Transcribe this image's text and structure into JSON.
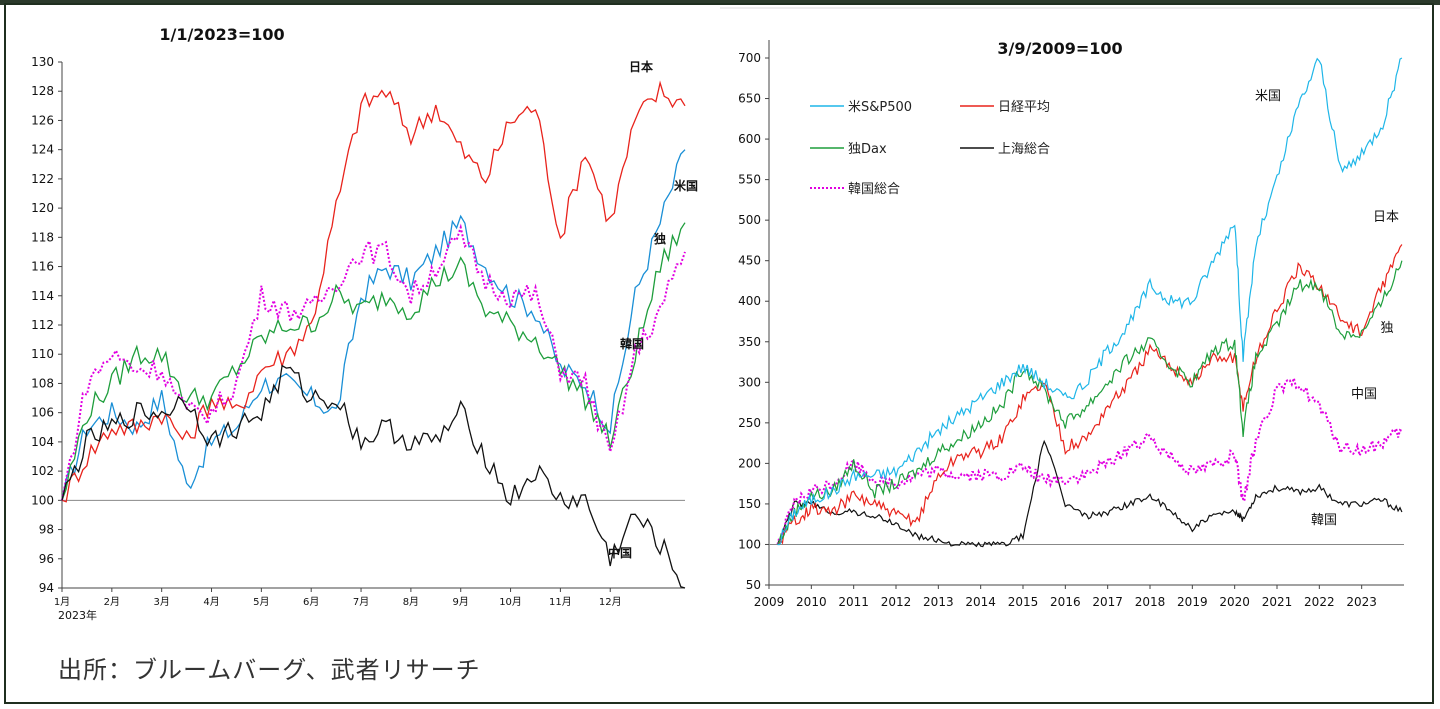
{
  "source_note": "出所：ブルームバーグ、武者リサーチ",
  "colors": {
    "us": "#1a8fd6",
    "japan": "#e8231c",
    "germany": "#1e9e3c",
    "china": "#111111",
    "korea": "#e100e1",
    "us_right": "#1fb6e8"
  },
  "chart_data": [
    {
      "type": "line",
      "title": "1/1/2023=100",
      "xlabel": "",
      "ylabel": "",
      "ylim": [
        94,
        130
      ],
      "yticks": [
        94,
        96,
        98,
        100,
        102,
        104,
        106,
        108,
        110,
        112,
        114,
        116,
        118,
        120,
        122,
        124,
        126,
        128,
        130
      ],
      "xtick_labels": [
        "1月",
        "2月",
        "3月",
        "4月",
        "5月",
        "6月",
        "7月",
        "8月",
        "9月",
        "10月",
        "11月",
        "12月"
      ],
      "x_year_label": "2023年",
      "reference_line": 100,
      "x_months": [
        0,
        0.5,
        1,
        1.5,
        2,
        2.5,
        3,
        3.5,
        4,
        4.5,
        5,
        5.5,
        6,
        6.5,
        7,
        7.5,
        8,
        8.5,
        9,
        9.5,
        10,
        10.5,
        11,
        11.5,
        12,
        12.5
      ],
      "series": [
        {
          "name": "米国",
          "color_key": "us",
          "end_label": "米国",
          "values": [
            100,
            105,
            106,
            105,
            107,
            101,
            104,
            105,
            108,
            108,
            107,
            106,
            114,
            116,
            115,
            117,
            119,
            116,
            114,
            113,
            109,
            108,
            105,
            114,
            119,
            124
          ]
        },
        {
          "name": "日本",
          "color_key": "japan",
          "end_label": "日本",
          "values": [
            100,
            103,
            105,
            105,
            106,
            104,
            107,
            106,
            109,
            110,
            112,
            120,
            127,
            128,
            125,
            127,
            124,
            122,
            126,
            127,
            118,
            124,
            119,
            126,
            128,
            127
          ]
        },
        {
          "name": "独",
          "color_key": "germany",
          "end_label": "独",
          "values": [
            100,
            106,
            108,
            110,
            110,
            107,
            107,
            109,
            111,
            112,
            112,
            114,
            113,
            114,
            113,
            115,
            116,
            113,
            112,
            111,
            109,
            107,
            104,
            110,
            116,
            119
          ]
        },
        {
          "name": "韓国",
          "color_key": "korea",
          "end_label": "韓国",
          "values": [
            100,
            108,
            110,
            109,
            109,
            106,
            106,
            108,
            114,
            113,
            113,
            115,
            117,
            117,
            114,
            116,
            118,
            115,
            114,
            114,
            109,
            108,
            103,
            110,
            113,
            117
          ]
        },
        {
          "name": "中国",
          "color_key": "china",
          "end_label": "中国",
          "values": [
            100,
            104,
            105,
            106,
            106,
            107,
            104,
            105,
            106,
            109,
            107,
            107,
            104,
            105,
            104,
            104,
            106,
            103,
            100,
            102,
            100,
            100,
            96,
            99,
            97,
            94
          ]
        }
      ]
    },
    {
      "type": "line",
      "title": "3/9/2009=100",
      "xlabel": "",
      "ylabel": "",
      "ylim": [
        50,
        700
      ],
      "yticks": [
        50,
        100,
        150,
        200,
        250,
        300,
        350,
        400,
        450,
        500,
        550,
        600,
        650,
        700
      ],
      "xtick_labels": [
        "2009",
        "2010",
        "2011",
        "2012",
        "2013",
        "2014",
        "2015",
        "2016",
        "2017",
        "2018",
        "2019",
        "2020",
        "2021",
        "2022",
        "2023"
      ],
      "reference_line": 100,
      "legend_placement": "top-left",
      "x_years": [
        2009.2,
        2009.6,
        2010,
        2010.5,
        2011,
        2011.5,
        2012,
        2012.5,
        2013,
        2013.5,
        2014,
        2014.5,
        2015,
        2015.5,
        2016,
        2016.5,
        2017,
        2017.5,
        2018,
        2018.5,
        2019,
        2019.5,
        2020,
        2020.2,
        2020.5,
        2021,
        2021.5,
        2022,
        2022.5,
        2023,
        2023.5,
        2023.95
      ],
      "series": [
        {
          "name": "米S&P500",
          "color_key": "us_right",
          "end_label": "米国",
          "values": [
            100,
            140,
            155,
            165,
            185,
            185,
            190,
            215,
            240,
            260,
            280,
            300,
            320,
            300,
            280,
            300,
            340,
            370,
            420,
            400,
            400,
            450,
            500,
            330,
            470,
            550,
            640,
            700,
            560,
            580,
            620,
            700
          ]
        },
        {
          "name": "日経平均",
          "color_key": "japan",
          "end_label": "日本",
          "values": [
            100,
            130,
            145,
            140,
            160,
            150,
            135,
            130,
            185,
            210,
            215,
            230,
            280,
            300,
            220,
            230,
            270,
            300,
            340,
            320,
            300,
            330,
            330,
            270,
            330,
            390,
            440,
            420,
            380,
            360,
            420,
            470
          ]
        },
        {
          "name": "独Dax",
          "color_key": "germany",
          "end_label": "独",
          "values": [
            100,
            140,
            160,
            165,
            200,
            165,
            175,
            190,
            215,
            230,
            250,
            270,
            320,
            290,
            250,
            270,
            300,
            330,
            350,
            320,
            300,
            340,
            350,
            240,
            330,
            370,
            420,
            420,
            360,
            360,
            400,
            450
          ]
        },
        {
          "name": "上海総合",
          "color_key": "china",
          "end_label": "中国",
          "values": [
            100,
            150,
            150,
            140,
            140,
            135,
            125,
            110,
            105,
            100,
            100,
            100,
            110,
            230,
            150,
            135,
            140,
            150,
            160,
            140,
            120,
            135,
            140,
            130,
            160,
            170,
            165,
            170,
            150,
            150,
            155,
            140
          ]
        },
        {
          "name": "韓国総合",
          "color_key": "korea",
          "end_label": "韓国",
          "values": [
            100,
            150,
            165,
            175,
            200,
            180,
            175,
            185,
            190,
            185,
            185,
            185,
            195,
            180,
            180,
            185,
            200,
            220,
            230,
            210,
            190,
            200,
            210,
            150,
            230,
            290,
            300,
            270,
            220,
            215,
            225,
            240
          ]
        }
      ]
    }
  ]
}
